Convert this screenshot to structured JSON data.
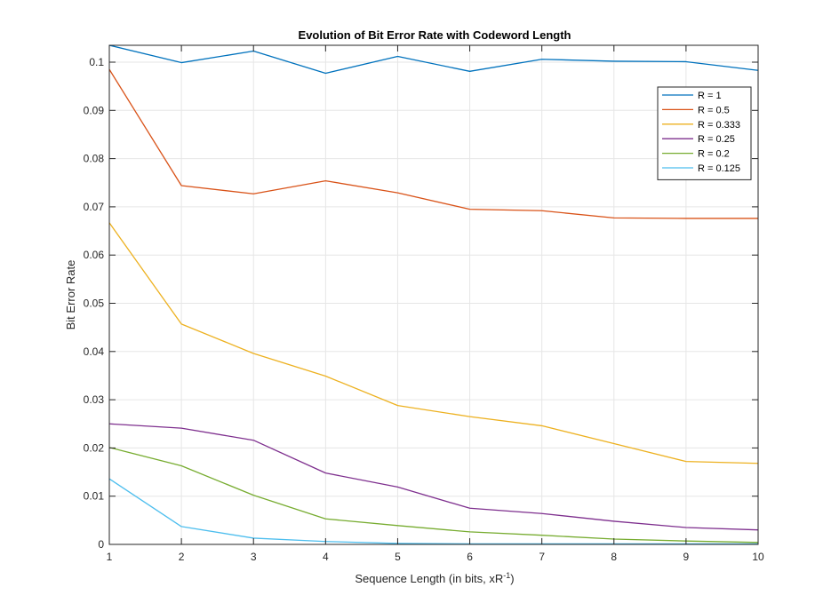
{
  "chart_data": {
    "type": "line",
    "title": "Evolution of Bit Error Rate with Codeword Length",
    "xlabel": "Sequence Length (in bits, xR",
    "xlabel_sup": "-1",
    "xlabel_end": ")",
    "ylabel": "Bit Error Rate",
    "xlim": [
      1,
      10
    ],
    "ylim": [
      0,
      0.1035
    ],
    "xticks": [
      "1",
      "2",
      "3",
      "4",
      "5",
      "6",
      "7",
      "8",
      "9",
      "10"
    ],
    "yticks": [
      "0",
      "0.01",
      "0.02",
      "0.03",
      "0.04",
      "0.05",
      "0.06",
      "0.07",
      "0.08",
      "0.09",
      "0.1"
    ],
    "grid": true,
    "legend_position": "top-right",
    "x": [
      1,
      2,
      3,
      4,
      5,
      6,
      7,
      8,
      9,
      10
    ],
    "series": [
      {
        "name": "R = 1",
        "color": "#0072bd",
        "values": [
          0.1035,
          0.0999,
          0.1023,
          0.0977,
          0.1012,
          0.0981,
          0.1006,
          0.1002,
          0.1001,
          0.0983
        ]
      },
      {
        "name": "R = 0.5",
        "color": "#d95319",
        "values": [
          0.0985,
          0.0744,
          0.0727,
          0.0754,
          0.0729,
          0.0695,
          0.0692,
          0.0677,
          0.0676,
          0.0676
        ]
      },
      {
        "name": "R = 0.333",
        "color": "#edb120",
        "values": [
          0.0667,
          0.0457,
          0.0396,
          0.0349,
          0.0288,
          0.0265,
          0.0246,
          0.0209,
          0.0172,
          0.0168
        ]
      },
      {
        "name": "R = 0.25",
        "color": "#7e2f8e",
        "values": [
          0.025,
          0.0241,
          0.0216,
          0.0148,
          0.0119,
          0.0075,
          0.0064,
          0.0048,
          0.0035,
          0.003
        ]
      },
      {
        "name": "R = 0.2",
        "color": "#77ac30",
        "values": [
          0.0201,
          0.0163,
          0.0102,
          0.0053,
          0.0039,
          0.0026,
          0.0019,
          0.0011,
          0.0007,
          0.0004
        ]
      },
      {
        "name": "R = 0.125",
        "color": "#4dbeee",
        "values": [
          0.0136,
          0.0037,
          0.0013,
          0.0006,
          0.0002,
          0.0001,
          0.0001,
          0.0001,
          0.0001,
          0.0001
        ]
      }
    ]
  }
}
